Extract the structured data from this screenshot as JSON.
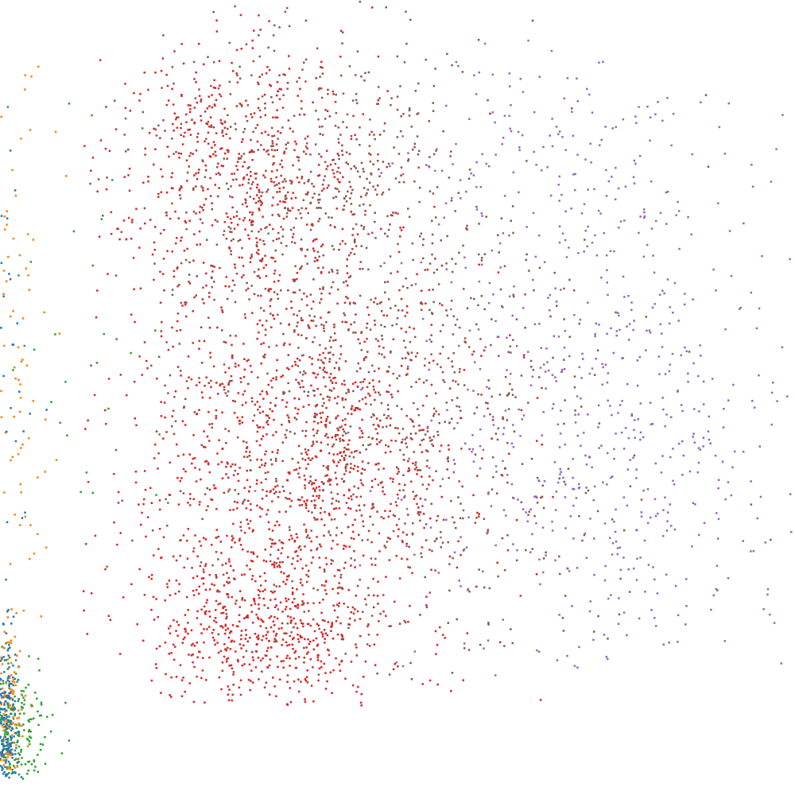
{
  "chart_data": {
    "type": "scatter",
    "title": "",
    "xlabel": "",
    "ylabel": "",
    "xlim": [
      0,
      100
    ],
    "ylim": [
      0,
      100
    ],
    "grid": false,
    "axes_visible": false,
    "legend": "none",
    "marker_size": 2.5,
    "seed": 7,
    "series": [
      {
        "color": "#d62728",
        "count": 2300,
        "clusters": [
          {
            "cx": 38,
            "cy": 42,
            "sx": 11,
            "sy": 14,
            "w": 0.55
          },
          {
            "cx": 30,
            "cy": 78,
            "sx": 9,
            "sy": 9,
            "w": 0.25
          },
          {
            "cx": 33,
            "cy": 20,
            "sx": 7,
            "sy": 5,
            "w": 0.2
          }
        ],
        "spread": {
          "xmin": 10,
          "xmax": 84,
          "ymin": 11,
          "ymax": 100
        }
      },
      {
        "color": "#8c564b",
        "count": 1400,
        "clusters": [
          {
            "cx": 48,
            "cy": 48,
            "sx": 14,
            "sy": 16,
            "w": 0.65
          },
          {
            "cx": 38,
            "cy": 78,
            "sx": 10,
            "sy": 10,
            "w": 0.35
          }
        ],
        "spread": {
          "xmin": 10,
          "xmax": 100,
          "ymin": 14,
          "ymax": 100
        }
      },
      {
        "color": "#9467bd",
        "count": 750,
        "clusters": [
          {
            "cx": 76,
            "cy": 45,
            "sx": 13,
            "sy": 16,
            "w": 0.75
          },
          {
            "cx": 70,
            "cy": 80,
            "sx": 12,
            "sy": 8,
            "w": 0.25
          }
        ],
        "spread": {
          "xmin": 32,
          "xmax": 100,
          "ymin": 15,
          "ymax": 95
        }
      },
      {
        "color": "#2ca02c",
        "count": 210,
        "clusters": [
          {
            "cx": 1.5,
            "cy": 7,
            "sx": 2.2,
            "sy": 5,
            "w": 0.85
          },
          {
            "cx": 10,
            "cy": 60,
            "sx": 8,
            "sy": 20,
            "w": 0.15
          }
        ],
        "spread": {
          "xmin": 0,
          "xmax": 66,
          "ymin": 2,
          "ymax": 87
        }
      },
      {
        "color": "#ff7f0e",
        "count": 190,
        "clusters": [
          {
            "cx": 0.8,
            "cy": 10,
            "sx": 1.0,
            "sy": 7,
            "w": 0.6
          },
          {
            "cx": 1.5,
            "cy": 55,
            "sx": 2.5,
            "sy": 25,
            "w": 0.4
          }
        ],
        "spread": {
          "xmin": 0,
          "xmax": 12,
          "ymin": 3,
          "ymax": 92
        }
      },
      {
        "color": "#1f77b4",
        "count": 190,
        "clusters": [
          {
            "cx": 0.7,
            "cy": 8,
            "sx": 0.9,
            "sy": 6,
            "w": 0.85
          },
          {
            "cx": 1.2,
            "cy": 40,
            "sx": 1.8,
            "sy": 20,
            "w": 0.15
          }
        ],
        "spread": {
          "xmin": 0,
          "xmax": 8,
          "ymin": 2,
          "ymax": 97
        }
      }
    ]
  }
}
